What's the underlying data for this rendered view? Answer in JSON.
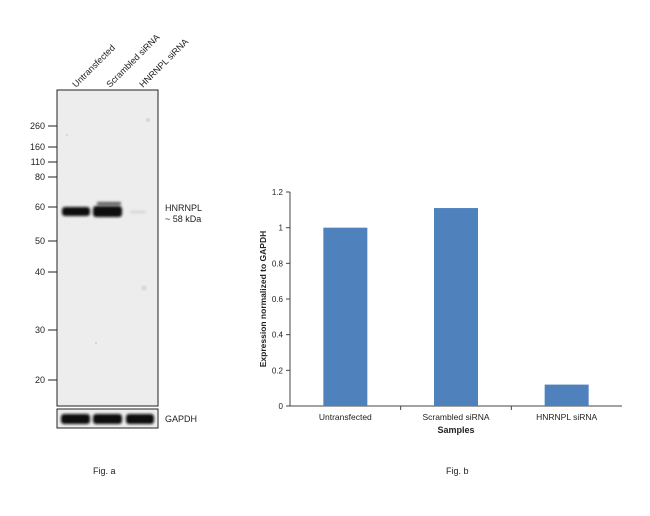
{
  "figure_a": {
    "caption": "Fig. a",
    "lanes": [
      "Untransfected",
      "Scrambled siRNA",
      "HNRNPL siRNA"
    ],
    "mw_markers": [
      "260",
      "160",
      "110",
      "80",
      "60",
      "50",
      "40",
      "30",
      "20"
    ],
    "target_label": "HNRNPL",
    "target_size": "~ 58 kDa",
    "loading_control": "GAPDH"
  },
  "figure_b": {
    "caption": "Fig. b"
  },
  "chart_data": {
    "type": "bar",
    "categories": [
      "Untransfected",
      "Scrambled siRNA",
      "HNRNPL siRNA"
    ],
    "values": [
      1.0,
      1.11,
      0.12
    ],
    "xlabel": "Samples",
    "ylabel": "Expression normalized to GAPDH",
    "ylim": [
      0,
      1.2
    ],
    "yticks": [
      "0",
      "0.2",
      "0.4",
      "0.6",
      "0.8",
      "1",
      "1.2"
    ],
    "bar_color": "#4f81bd",
    "grid": false
  }
}
